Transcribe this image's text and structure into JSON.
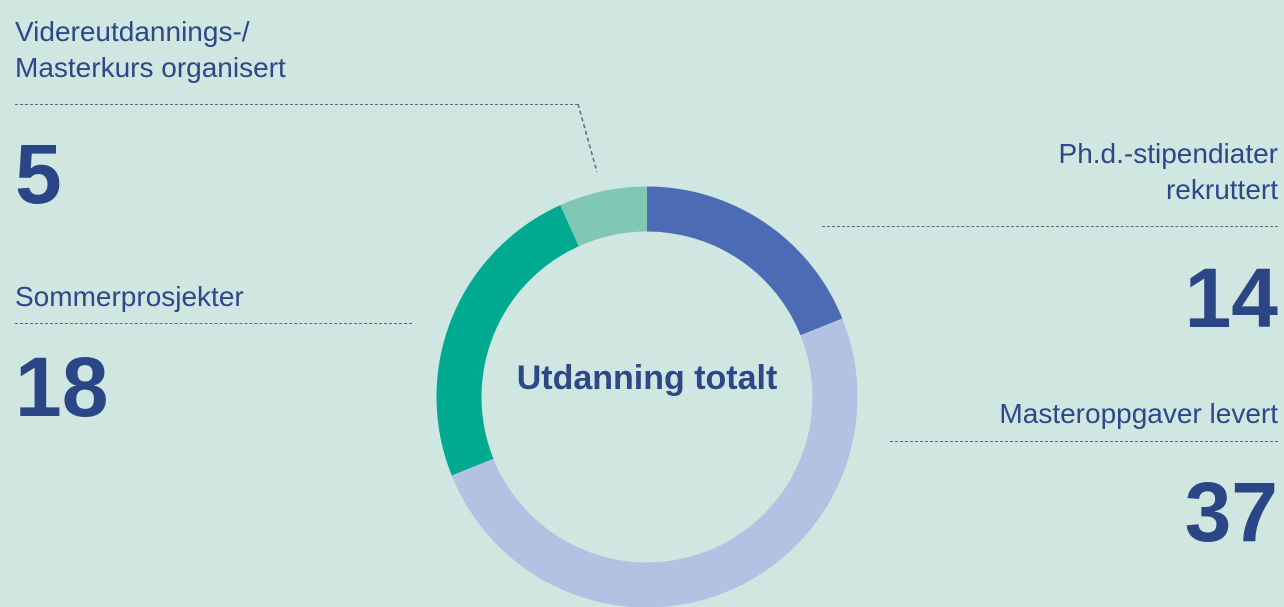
{
  "chart_data": {
    "type": "pie",
    "title": "Utdanning totalt",
    "categories": [
      "Ph.d.-stipendiater rekruttert",
      "Masteroppgaver levert",
      "Sommerprosjekter",
      "Videreutdannings-/ Masterkurs organisert"
    ],
    "values": [
      14,
      37,
      18,
      5
    ],
    "colors": [
      "#4b6bb4",
      "#b3c1e3",
      "#00aa90",
      "#80c7b4"
    ]
  }
}
